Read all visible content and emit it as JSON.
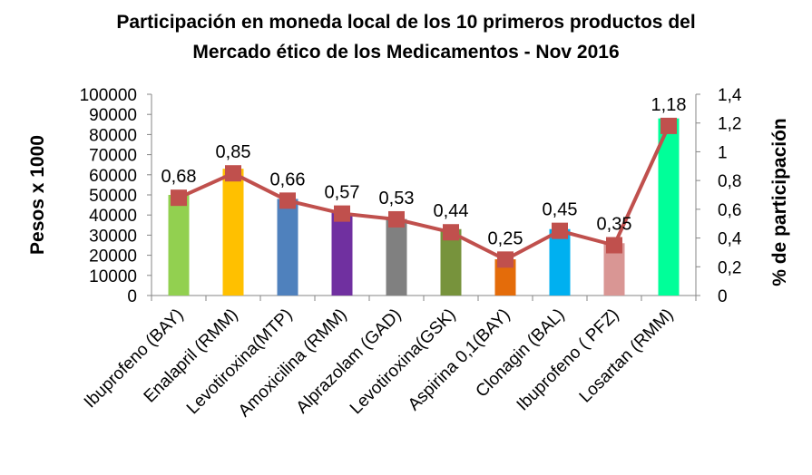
{
  "chart_data": {
    "type": "bar",
    "title_line1": "Participación en moneda local de los 10 primeros productos del",
    "title_line2": "Mercado ético de los Medicamentos - Nov 2016",
    "ylabel": "Pesos x 1000",
    "y2label": "% de participación",
    "ylim": [
      0,
      100000
    ],
    "y2lim": [
      0,
      1.4
    ],
    "yticks": [
      "0",
      "10000",
      "20000",
      "30000",
      "40000",
      "50000",
      "60000",
      "70000",
      "80000",
      "90000",
      "100000"
    ],
    "y2ticks": [
      "0",
      "0,2",
      "0,4",
      "0,6",
      "0,8",
      "1",
      "1,2",
      "1,4"
    ],
    "categories": [
      "Ibuprofeno (BAY)",
      "Enalapril (RMM)",
      "Levotiroxina(MTP)",
      "Amoxicilina (RMM)",
      "Alprazolam (GAD)",
      "Levotiroxina(GSK)",
      "Aspirina 0,1(BAY)",
      "Clonagin (BAL)",
      "Ibuprofeno ( PFZ)",
      "Losartan (RMM)"
    ],
    "series": [
      {
        "kind": "bar",
        "values": [
          50000,
          63000,
          48000,
          41000,
          38000,
          33000,
          18000,
          33000,
          26000,
          88000
        ],
        "colors": [
          "#92d050",
          "#ffc000",
          "#4f81bd",
          "#7030a0",
          "#808080",
          "#77933c",
          "#e46c0a",
          "#00b0f0",
          "#d99694",
          "#00ff99"
        ]
      },
      {
        "kind": "line",
        "axis": "right",
        "values": [
          0.68,
          0.85,
          0.66,
          0.57,
          0.53,
          0.44,
          0.25,
          0.45,
          0.35,
          1.18
        ],
        "labels": [
          "0,68",
          "0,85",
          "0,66",
          "0,57",
          "0,53",
          "0,44",
          "0,25",
          "0,45",
          "0,35",
          "1,18"
        ],
        "color": "#c0504d"
      }
    ],
    "grid": false,
    "legend": "none"
  }
}
